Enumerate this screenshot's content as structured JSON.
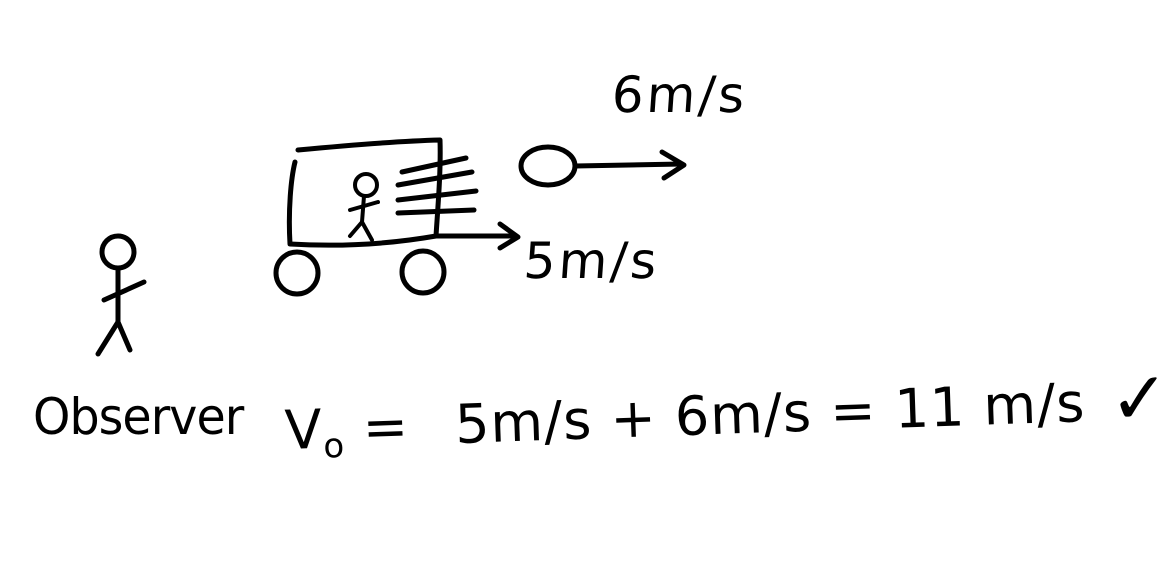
{
  "diagram": {
    "ball_velocity_label": "6m/s",
    "truck_velocity_label": "5m/s",
    "observer_label": "Observer",
    "equation": {
      "lhs": "V",
      "lhs_subscript": "o",
      "equals": "=",
      "term1": "5m/s",
      "plus": "+",
      "term2": "6m/s",
      "equals2": "=",
      "result": "11 m/s",
      "check": "✓"
    }
  }
}
